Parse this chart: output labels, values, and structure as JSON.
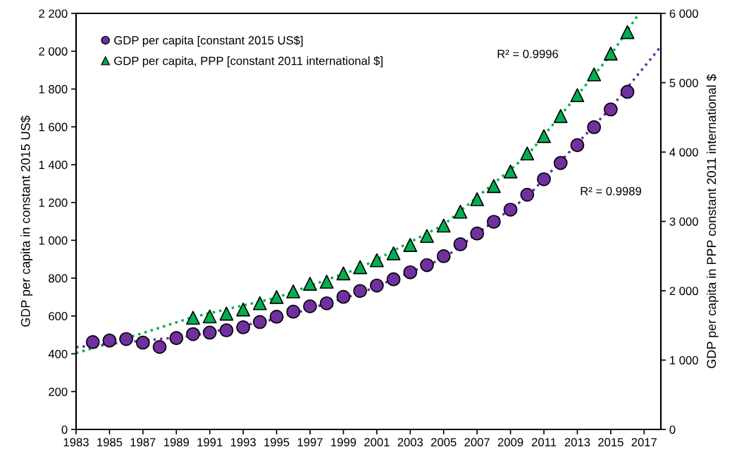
{
  "chart_data": {
    "type": "scatter",
    "xlabel": null,
    "ylabel": "GDP per capita in constant 2015 US$",
    "y2label": "GDP per capita in PPP constant 2011 international $",
    "xlim": [
      1983,
      2018
    ],
    "xticks": [
      1983,
      1985,
      1987,
      1989,
      1991,
      1993,
      1995,
      1997,
      1999,
      2001,
      2003,
      2005,
      2007,
      2009,
      2011,
      2013,
      2015,
      2017
    ],
    "ylim": [
      0,
      2200
    ],
    "yticks": [
      0,
      200,
      400,
      600,
      800,
      {
        "value": 1000,
        "label": "1 000"
      },
      {
        "value": 1200,
        "label": "1 200"
      },
      {
        "value": 1400,
        "label": "1 400"
      },
      {
        "value": 1600,
        "label": "1 600"
      },
      {
        "value": 1800,
        "label": "1 800"
      },
      {
        "value": 2000,
        "label": "2 000"
      },
      {
        "value": 2200,
        "label": "2 200"
      }
    ],
    "y2lim": [
      0,
      6000
    ],
    "y2ticks": [
      0,
      {
        "value": 1000,
        "label": "1 000"
      },
      {
        "value": 2000,
        "label": "2 000"
      },
      {
        "value": 3000,
        "label": "3 000"
      },
      {
        "value": 4000,
        "label": "4 000"
      },
      {
        "value": 5000,
        "label": "5 000"
      },
      {
        "value": 6000,
        "label": "6 000"
      }
    ],
    "grid": false,
    "legend": "top left",
    "series": [
      {
        "type": "line",
        "axis": "y",
        "color": "#7030a0",
        "line_style": "dotted",
        "marker": "none",
        "x": [
          1983,
          1990,
          1995,
          2000,
          2005,
          2010,
          2015,
          2018
        ],
        "values": [
          435,
          495,
          585,
          720,
          905,
          1230,
          1700,
          2025
        ]
      },
      {
        "type": "line",
        "axis": "y2",
        "color": "#00b050",
        "line_style": "dotted",
        "marker": "none",
        "x": [
          1983,
          1987,
          1990,
          1995,
          2000,
          2005,
          2010,
          2015,
          2016.7
        ],
        "values": [
          1100,
          1390,
          1620,
          1900,
          2330,
          2950,
          3950,
          5400,
          6000
        ]
      },
      {
        "name": "GDP per capita [constant 2015 US$]",
        "axis": "y",
        "color": "#7030a0",
        "marker": "circle",
        "x": [
          1984,
          1985,
          1986,
          1987,
          1988,
          1989,
          1990,
          1991,
          1992,
          1993,
          1994,
          1995,
          1996,
          1997,
          1998,
          1999,
          2000,
          2001,
          2002,
          2003,
          2004,
          2005,
          2006,
          2007,
          2008,
          2009,
          2010,
          2011,
          2012,
          2013,
          2014,
          2015,
          2016
        ],
        "values": [
          462,
          470,
          478,
          459,
          436,
          483,
          504,
          512,
          524,
          540,
          568,
          596,
          623,
          651,
          667,
          701,
          732,
          761,
          794,
          831,
          869,
          916,
          979,
          1036,
          1098,
          1162,
          1241,
          1323,
          1409,
          1503,
          1598,
          1692,
          1785
        ]
      },
      {
        "name": "GDP per capita, PPP [constant 2011 international $]",
        "axis": "y2",
        "color": "#00b050",
        "marker": "triangle",
        "x": [
          1990,
          1991,
          1992,
          1993,
          1994,
          1995,
          1996,
          1997,
          1998,
          1999,
          2000,
          2001,
          2002,
          2003,
          2004,
          2005,
          2006,
          2007,
          2008,
          2009,
          2010,
          2011,
          2012,
          2013,
          2014,
          2015,
          2016
        ],
        "values": [
          1610,
          1630,
          1670,
          1730,
          1820,
          1910,
          1990,
          2100,
          2130,
          2250,
          2340,
          2440,
          2540,
          2660,
          2790,
          2940,
          3140,
          3320,
          3510,
          3720,
          3980,
          4230,
          4520,
          4820,
          5120,
          5420,
          5730
        ]
      }
    ],
    "annotations": [
      "R² = 0.9996",
      "R² = 0.9989"
    ]
  }
}
